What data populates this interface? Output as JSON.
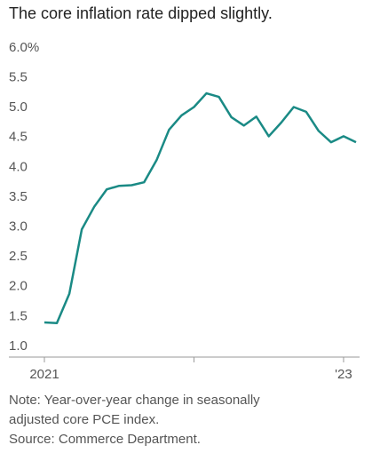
{
  "chart_data": {
    "type": "line",
    "title": "The core inflation rate dipped slightly.",
    "categories": [
      "2021",
      null,
      null,
      null,
      null,
      null,
      null,
      null,
      null,
      null,
      null,
      null,
      null,
      null,
      null,
      null,
      null,
      null,
      null,
      null,
      null,
      null,
      null,
      null,
      "'23",
      null
    ],
    "series": [
      {
        "name": "Core PCE",
        "color": "#1a8a85",
        "values": [
          1.4,
          1.39,
          1.88,
          2.96,
          3.34,
          3.63,
          3.69,
          3.7,
          3.75,
          4.12,
          4.63,
          4.87,
          5.01,
          5.24,
          5.18,
          4.84,
          4.7,
          4.85,
          4.52,
          4.75,
          5.01,
          4.93,
          4.61,
          4.42,
          4.52,
          4.42
        ]
      }
    ],
    "ylim": [
      0.82,
      6.0
    ],
    "yticks": [
      {
        "value": 6.0,
        "label": "6.0%"
      },
      5.5,
      {
        "value": 5.0,
        "label": "5.0"
      },
      4.5,
      {
        "value": 4.0,
        "label": "4.0"
      },
      3.5,
      {
        "value": 3.0,
        "label": "3.0"
      },
      2.5,
      {
        "value": 2.0,
        "label": "2.0"
      },
      1.5,
      {
        "value": 1.0,
        "label": "1.0"
      }
    ],
    "notes": [
      "Note: Year-over-year change in seasonally",
      "adjusted core PCE index.",
      "Source: Commerce Department."
    ]
  }
}
